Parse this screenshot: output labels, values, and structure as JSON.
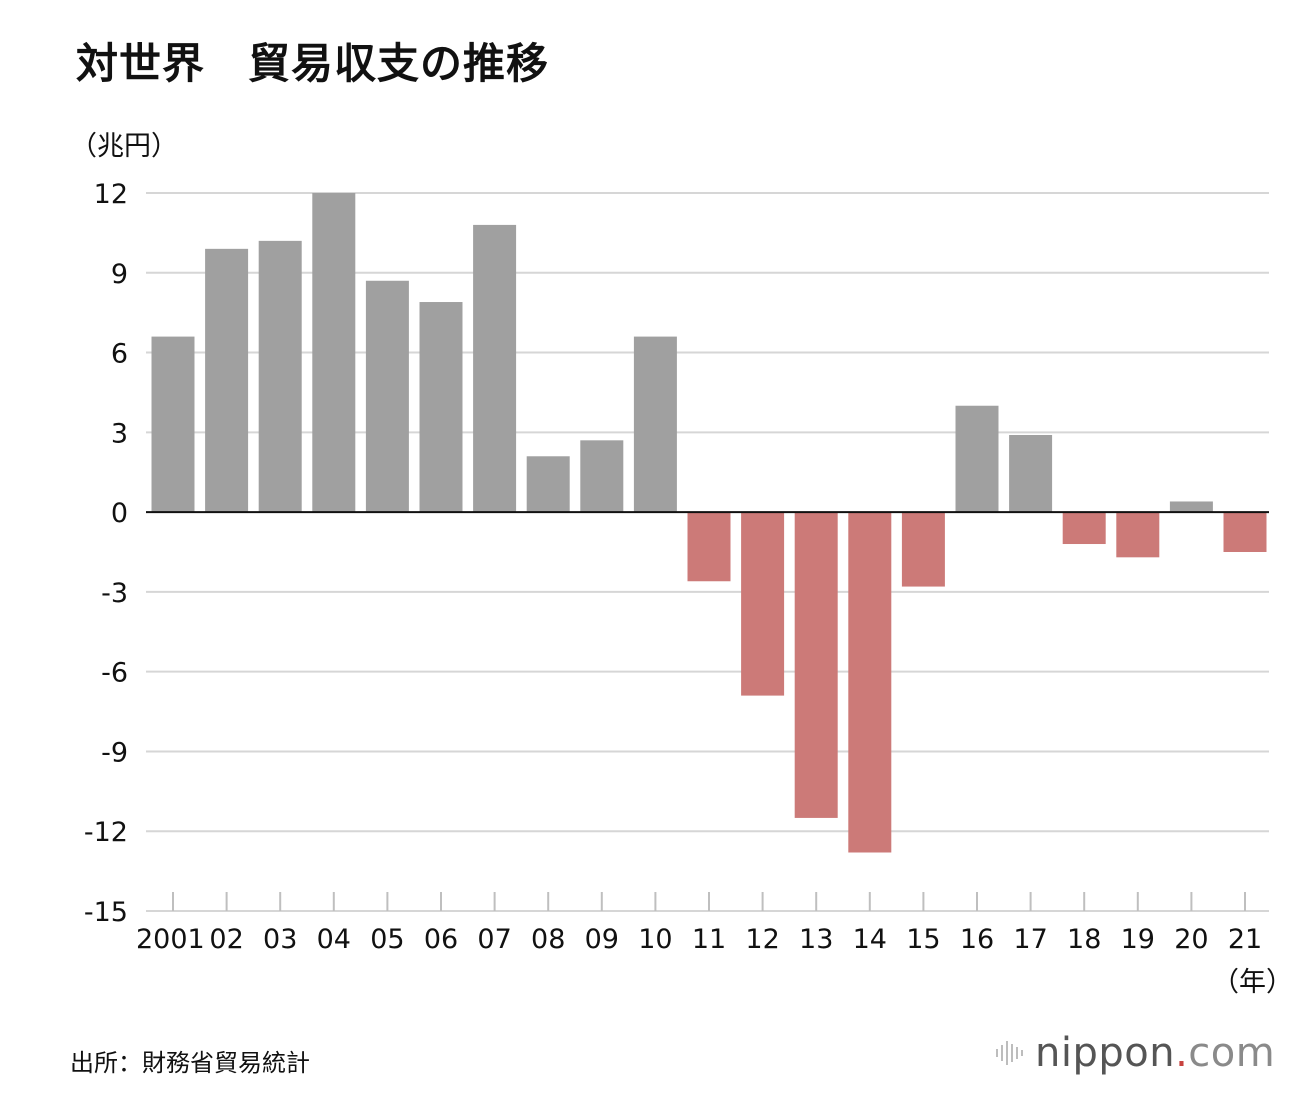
{
  "header": {
    "title": "対世界　貿易収支の推移",
    "unit": "（兆円）"
  },
  "footer": {
    "source": "出所：財務省貿易統計",
    "logo_name": "nippon",
    "logo_dot": ".",
    "logo_suffix": "com"
  },
  "colors": {
    "positive": "#a0a0a0",
    "negative": "#cc7a78",
    "grid": "#d6d6d6",
    "zero_line": "#111111"
  },
  "chart_data": {
    "type": "bar",
    "title": "対世界　貿易収支の推移",
    "ylabel": "（兆円）",
    "xlabel": "（年）",
    "ylim": [
      -15,
      12
    ],
    "yticks": [
      12,
      9,
      6,
      3,
      0,
      -3,
      -6,
      -9,
      -12,
      -15
    ],
    "grid": true,
    "categories": [
      "2001",
      "02",
      "03",
      "04",
      "05",
      "06",
      "07",
      "08",
      "09",
      "10",
      "11",
      "12",
      "13",
      "14",
      "15",
      "16",
      "17",
      "18",
      "19",
      "20",
      "21"
    ],
    "values": [
      6.6,
      9.9,
      10.2,
      12.0,
      8.7,
      7.9,
      10.8,
      2.1,
      2.7,
      6.6,
      -2.6,
      -6.9,
      -11.5,
      -12.8,
      -2.8,
      4.0,
      2.9,
      -1.2,
      -1.7,
      0.4,
      -1.5
    ]
  }
}
